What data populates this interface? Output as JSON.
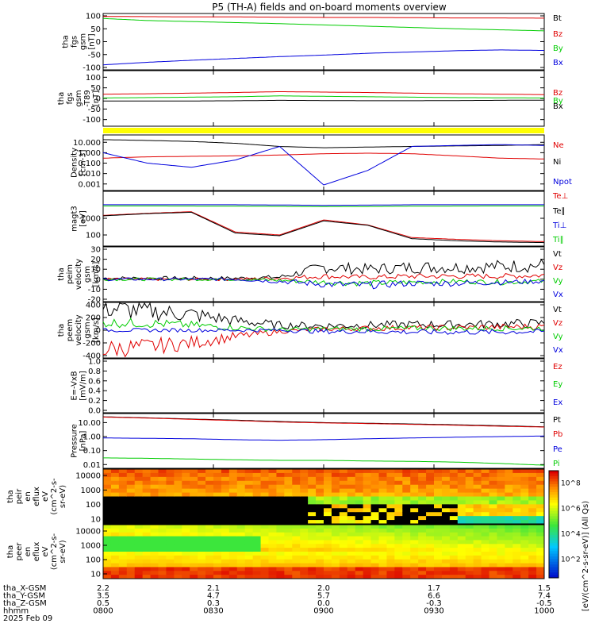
{
  "title": "P5 (TH-A) fields and on-board moments overview",
  "colors": {
    "black": "#000000",
    "red": "#e00000",
    "green": "#00cc00",
    "blue": "#0000dd",
    "yellow": "#ffff00"
  },
  "chart_data": {
    "type": "line",
    "time_ticks": [
      "0800",
      "0830",
      "0900",
      "0930",
      "1000"
    ],
    "time_range": [
      "08:00",
      "10:00"
    ],
    "panels": [
      {
        "id": "fgs_gsm",
        "ylabel": [
          "tha",
          "fgs",
          "gsm",
          "[nT]"
        ],
        "yticks": [
          "100",
          "50",
          "0",
          "-50",
          "-100"
        ],
        "ylim": [
          -100,
          100
        ],
        "log": false,
        "series": [
          {
            "name": "Bt",
            "color": "#000000",
            "values": []
          },
          {
            "name": "Bz",
            "color": "#e00000",
            "values": [
              98,
              97,
              96,
              96,
              95,
              94,
              94,
              93,
              92,
              92,
              91
            ]
          },
          {
            "name": "By",
            "color": "#00cc00",
            "values": [
              90,
              82,
              78,
              74,
              70,
              65,
              60,
              55,
              50,
              46,
              42
            ]
          },
          {
            "name": "Bx",
            "color": "#0000dd",
            "values": [
              -90,
              -80,
              -72,
              -65,
              -58,
              -52,
              -45,
              -40,
              -35,
              -32,
              -34
            ]
          }
        ]
      },
      {
        "id": "fgs_gsm_dev",
        "ylabel": [
          "tha",
          "fgs",
          "gsm",
          "-T89",
          "[nT]"
        ],
        "yticks": [
          "100",
          "50",
          "0",
          "-50",
          "-100"
        ],
        "ylim": [
          -120,
          120
        ],
        "log": false,
        "series": [
          {
            "name": "Bz",
            "color": "#e00000",
            "values": [
              20,
              22,
              25,
              28,
              32,
              30,
              28,
              25,
              22,
              20,
              18
            ]
          },
          {
            "name": "By",
            "color": "#00cc00",
            "values": [
              2,
              4,
              6,
              8,
              12,
              10,
              8,
              6,
              4,
              3,
              2
            ]
          },
          {
            "name": "Bx",
            "color": "#000000",
            "values": [
              -12,
              -12,
              -12,
              -11,
              -9,
              -10,
              -11,
              -11,
              -10,
              -9,
              -8
            ]
          }
        ]
      },
      {
        "id": "density",
        "ylabel": [
          "Density",
          "[cm-3]"
        ],
        "yticks": [
          "10.000",
          "1.000",
          "0.100",
          "0.010",
          "0.001"
        ],
        "ylim": [
          0.0004,
          30
        ],
        "log": true,
        "series": [
          {
            "name": "Ne",
            "color": "#e00000",
            "values": [
              0.3,
              0.4,
              0.45,
              0.5,
              0.6,
              0.8,
              0.9,
              0.8,
              0.5,
              0.3,
              0.25
            ]
          },
          {
            "name": "Ni",
            "color": "#000000",
            "values": [
              18,
              15,
              12,
              8,
              4,
              3,
              3.5,
              4,
              4.5,
              5,
              6
            ]
          },
          {
            "name": "Npot",
            "color": "#0000dd",
            "values": [
              1,
              0.1,
              0.04,
              0.2,
              4,
              0.0008,
              0.02,
              4,
              5,
              6,
              5
            ]
          }
        ]
      },
      {
        "id": "temperature",
        "ylabel": [
          "magt3",
          "[eV]"
        ],
        "yticks": [
          "1000",
          "100"
        ],
        "ylim": [
          30,
          30000
        ],
        "log": true,
        "series": [
          {
            "name": "Te⊥",
            "color": "#e00000",
            "values": [
              1500,
              2000,
              2500,
              150,
              100,
              800,
              400,
              70,
              55,
              45,
              40
            ]
          },
          {
            "name": "Te∥",
            "color": "#000000",
            "values": [
              1400,
              1900,
              2300,
              130,
              90,
              700,
              380,
              60,
              45,
              38,
              35
            ]
          },
          {
            "name": "Ti⊥",
            "color": "#0000dd",
            "values": [
              6500,
              6500,
              6500,
              6500,
              6300,
              6000,
              6200,
              6500,
              6500,
              6500,
              6500
            ]
          },
          {
            "name": "Ti∥",
            "color": "#00cc00",
            "values": [
              5500,
              5500,
              5400,
              5300,
              5200,
              5000,
              5100,
              5300,
              5400,
              5500,
              5500
            ]
          }
        ]
      },
      {
        "id": "peim_velocity",
        "ylabel": [
          "tha",
          "peim",
          "velocity",
          "gsm",
          "[km/s]"
        ],
        "yticks": [
          "30",
          "20",
          "10",
          "0",
          "-10",
          "-20"
        ],
        "ylim": [
          -20,
          30
        ],
        "log": false,
        "series": [
          {
            "name": "Vt",
            "color": "#000000",
            "values": [
              1,
              1,
              1,
              1,
              2,
              12,
              10,
              12,
              12,
              13,
              14
            ]
          },
          {
            "name": "Vz",
            "color": "#e00000",
            "values": [
              0,
              0,
              0,
              0,
              1,
              3,
              2,
              3,
              3,
              3,
              4
            ]
          },
          {
            "name": "Vy",
            "color": "#00cc00",
            "values": [
              0,
              0,
              0,
              0,
              -1,
              -3,
              -4,
              -3,
              -2,
              -3,
              -2
            ]
          },
          {
            "name": "Vx",
            "color": "#0000dd",
            "values": [
              0,
              0,
              0,
              0,
              -2,
              -5,
              -6,
              -4,
              -4,
              -3,
              -2
            ]
          }
        ]
      },
      {
        "id": "peem_velocity",
        "ylabel": [
          "tha",
          "peem",
          "velocity",
          "gsm",
          "[km/s]"
        ],
        "yticks": [
          "400",
          "200",
          "0",
          "-200",
          "-400"
        ],
        "ylim": [
          -400,
          400
        ],
        "log": false,
        "series": [
          {
            "name": "Vt",
            "color": "#000000",
            "values": [
              350,
              300,
              250,
              150,
              80,
              70,
              80,
              90,
              90,
              100,
              110
            ]
          },
          {
            "name": "Vz",
            "color": "#e00000",
            "values": [
              -300,
              -260,
              -200,
              -100,
              -20,
              20,
              30,
              40,
              40,
              50,
              60
            ]
          },
          {
            "name": "Vy",
            "color": "#00cc00",
            "values": [
              120,
              110,
              80,
              40,
              10,
              20,
              20,
              30,
              30,
              30,
              30
            ]
          },
          {
            "name": "Vx",
            "color": "#0000dd",
            "values": [
              0,
              0,
              0,
              0,
              0,
              -20,
              -20,
              -30,
              -30,
              -30,
              -20
            ]
          }
        ]
      },
      {
        "id": "efield",
        "ylabel": [
          "E=-VxB",
          "[mV/m]"
        ],
        "yticks": [
          "1.0",
          "0.8",
          "0.6",
          "0.4",
          "0.2",
          "0.0"
        ],
        "ylim": [
          0,
          1
        ],
        "log": false,
        "series": [
          {
            "name": "Ez",
            "color": "#e00000",
            "values": []
          },
          {
            "name": "Ey",
            "color": "#00cc00",
            "values": []
          },
          {
            "name": "Ex",
            "color": "#0000dd",
            "values": []
          }
        ]
      },
      {
        "id": "pressure",
        "ylabel": [
          "Pressure",
          "[nPa]"
        ],
        "yticks": [
          "10.00",
          "1.00",
          "0.10",
          "0.01"
        ],
        "ylim": [
          0.008,
          30
        ],
        "log": true,
        "series": [
          {
            "name": "Pt",
            "color": "#000000",
            "values": [
              26,
              22,
              18,
              15,
              12,
              10,
              9,
              8,
              7,
              6,
              5
            ]
          },
          {
            "name": "Pb",
            "color": "#e00000",
            "values": [
              25,
              21,
              17,
              14,
              11,
              9.5,
              8.5,
              7.5,
              6.5,
              5.5,
              4.8
            ]
          },
          {
            "name": "Pe",
            "color": "#0000dd",
            "values": [
              0.8,
              0.75,
              0.7,
              0.6,
              0.55,
              0.6,
              0.7,
              0.8,
              0.9,
              1.0,
              1.1
            ]
          },
          {
            "name": "Pi",
            "color": "#00cc00",
            "values": [
              0.03,
              0.028,
              0.025,
              0.022,
              0.02,
              0.02,
              0.018,
              0.017,
              0.015,
              0.012,
              0.009
            ]
          }
        ]
      }
    ],
    "spectrograms": [
      {
        "id": "peir_en_eflux",
        "ylabel": [
          "tha",
          "peir",
          "en",
          "eflux",
          "eV",
          "(cm^2-s-",
          "sr-eV)"
        ],
        "yticks": [
          "10000",
          "1000",
          "100",
          "10"
        ]
      },
      {
        "id": "peer_en_eflux",
        "ylabel": [
          "tha",
          "peer",
          "en",
          "eflux",
          "eV",
          "(cm^2-s-",
          "sr-eV)"
        ],
        "yticks": [
          "10000",
          "1000",
          "100",
          "10"
        ]
      }
    ],
    "colorbar": {
      "label": "[eV/(cm^2-s-sr-eV)] (All Qs)",
      "ticks": [
        "10^8",
        "10^6",
        "10^4",
        "10^2"
      ]
    },
    "ephemeris": {
      "rows": [
        {
          "label": "tha_X-GSM",
          "values": [
            "2.2",
            "2.1",
            "2.0",
            "1.7",
            "1.5"
          ]
        },
        {
          "label": "tha_Y-GSM",
          "values": [
            "3.5",
            "4.7",
            "5.7",
            "6.6",
            "7.4"
          ]
        },
        {
          "label": "tha_Z-GSM",
          "values": [
            "0.5",
            "0.3",
            "0.0",
            "-0.3",
            "-0.5"
          ]
        },
        {
          "label": "hhmm",
          "values": [
            "0800",
            "0830",
            "0900",
            "0930",
            "1000"
          ]
        }
      ],
      "date": "2025 Feb 09"
    }
  }
}
